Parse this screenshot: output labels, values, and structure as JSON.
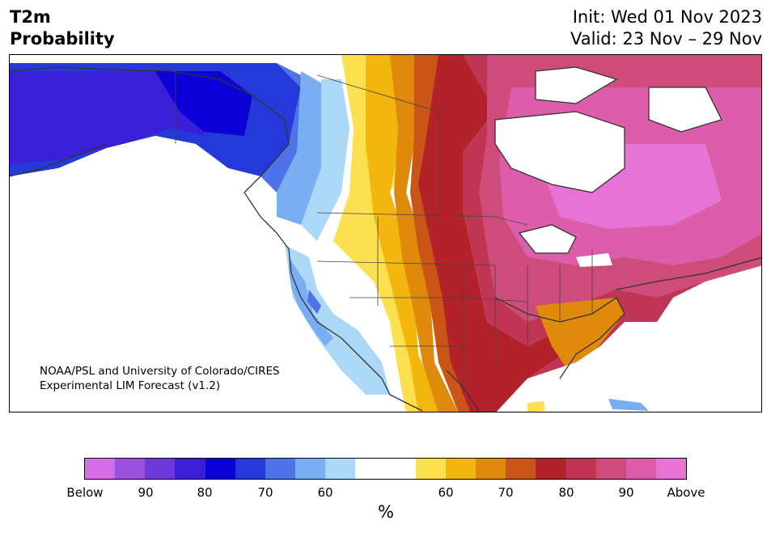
{
  "header": {
    "title_line1": "T2m",
    "title_line2": "Probability",
    "init_text": "Init: Wed 01 Nov 2023",
    "valid_text": "Valid: 23 Nov – 29 Nov"
  },
  "map": {
    "credit_line1": "NOAA/PSL and University of Colorado/CIRES",
    "credit_line2": "Experimental LIM Forecast (v1.2)"
  },
  "colorbar": {
    "unit_label": "%",
    "colors": [
      "#d46ee6",
      "#9b50dd",
      "#6b3ad8",
      "#3a1fd6",
      "#0b00d5",
      "#2539d8",
      "#4f72e8",
      "#7aaef2",
      "#acd8f8",
      "#ffffff",
      "#ffffff",
      "#fde04f",
      "#f2b60e",
      "#e08a0b",
      "#c95516",
      "#b3212a",
      "#c03553",
      "#ce4c7a",
      "#dc5eab",
      "#e674d6"
    ],
    "tick_labels": [
      "Below",
      "90",
      "80",
      "70",
      "60",
      "60",
      "70",
      "80",
      "90",
      "Above"
    ]
  }
}
